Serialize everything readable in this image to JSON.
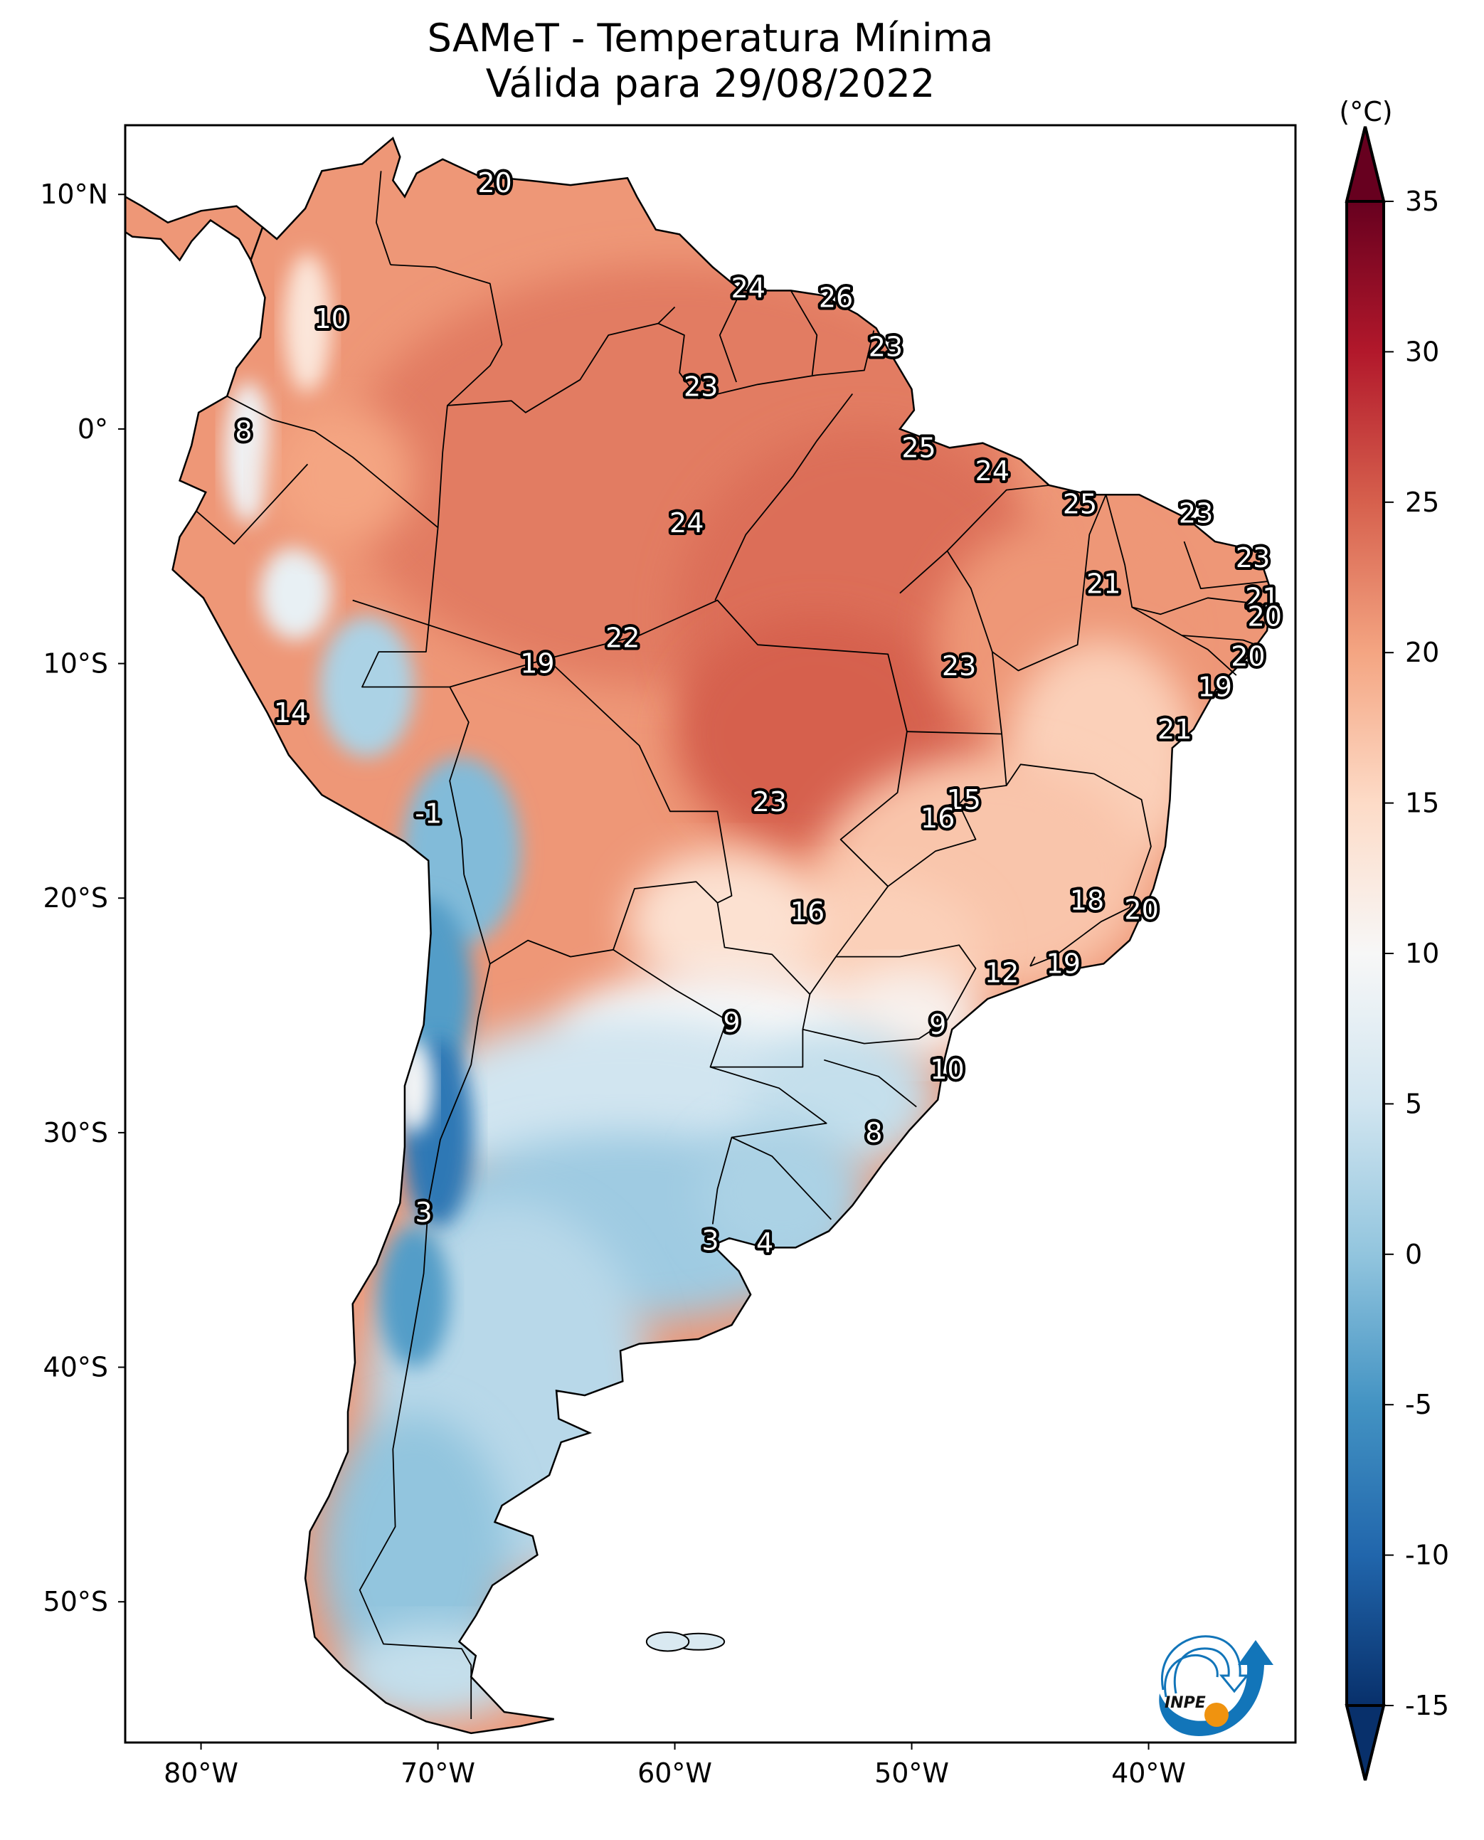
{
  "title": {
    "line1": "SAMeT - Temperatura Mínima",
    "line2": "Válida para 29/08/2022"
  },
  "chart_data": {
    "type": "heatmap",
    "subtype": "geographic-map",
    "title": "SAMeT - Temperatura Mínima",
    "subtitle": "Válida para 29/08/2022",
    "region": "South America",
    "variable": "Minimum temperature",
    "units": "°C",
    "extent": {
      "lon": [
        -83.2,
        -33.8
      ],
      "lat": [
        -56.0,
        12.95
      ]
    },
    "x_ticks": [
      {
        "value": -80,
        "label": "80°W"
      },
      {
        "value": -70,
        "label": "70°W"
      },
      {
        "value": -60,
        "label": "60°W"
      },
      {
        "value": -50,
        "label": "50°W"
      },
      {
        "value": -40,
        "label": "40°W"
      }
    ],
    "y_ticks": [
      {
        "value": 10,
        "label": "10°N"
      },
      {
        "value": 0,
        "label": "0°"
      },
      {
        "value": -10,
        "label": "10°S"
      },
      {
        "value": -20,
        "label": "20°S"
      },
      {
        "value": -30,
        "label": "30°S"
      },
      {
        "value": -40,
        "label": "40°S"
      },
      {
        "value": -50,
        "label": "50°S"
      }
    ],
    "colorbar": {
      "label": "(°C)",
      "colormap": "RdBu_r",
      "range": [
        -15,
        35
      ],
      "extend": "both",
      "ticks": [
        35,
        30,
        25,
        20,
        15,
        10,
        5,
        0,
        -5,
        -10,
        -15
      ],
      "tick_labels": [
        "35",
        "30",
        "25",
        "20",
        "15",
        "10",
        "5",
        "0",
        "-5",
        "-10",
        "-15"
      ],
      "stops": [
        {
          "value": -15,
          "color": "#08306b"
        },
        {
          "value": -10,
          "color": "#2166ac"
        },
        {
          "value": -5,
          "color": "#4393c3"
        },
        {
          "value": 0,
          "color": "#92c5de"
        },
        {
          "value": 5,
          "color": "#d1e5f0"
        },
        {
          "value": 10,
          "color": "#f7f7f7"
        },
        {
          "value": 15,
          "color": "#fddbc7"
        },
        {
          "value": 20,
          "color": "#f4a582"
        },
        {
          "value": 25,
          "color": "#d6604d"
        },
        {
          "value": 30,
          "color": "#b2182b"
        },
        {
          "value": 35,
          "color": "#67001f"
        }
      ]
    },
    "station_labels": [
      {
        "value": "20",
        "lon": -67.6,
        "lat": 10.5
      },
      {
        "value": "10",
        "lon": -74.5,
        "lat": 4.7
      },
      {
        "value": "8",
        "lon": -78.2,
        "lat": -0.1
      },
      {
        "value": "24",
        "lon": -56.9,
        "lat": 6.0
      },
      {
        "value": "26",
        "lon": -53.2,
        "lat": 5.6
      },
      {
        "value": "23",
        "lon": -51.1,
        "lat": 3.5
      },
      {
        "value": "23",
        "lon": -58.9,
        "lat": 1.8
      },
      {
        "value": "25",
        "lon": -49.7,
        "lat": -0.8
      },
      {
        "value": "24",
        "lon": -59.5,
        "lat": -4.0
      },
      {
        "value": "24",
        "lon": -46.6,
        "lat": -1.8
      },
      {
        "value": "25",
        "lon": -42.9,
        "lat": -3.2
      },
      {
        "value": "23",
        "lon": -38.0,
        "lat": -3.6
      },
      {
        "value": "21",
        "lon": -41.9,
        "lat": -6.6
      },
      {
        "value": "23",
        "lon": -35.6,
        "lat": -5.5
      },
      {
        "value": "21",
        "lon": -35.2,
        "lat": -7.2
      },
      {
        "value": "20",
        "lon": -35.1,
        "lat": -8.0
      },
      {
        "value": "20",
        "lon": -35.8,
        "lat": -9.7
      },
      {
        "value": "19",
        "lon": -37.2,
        "lat": -11.0
      },
      {
        "value": "21",
        "lon": -38.9,
        "lat": -12.8
      },
      {
        "value": "23",
        "lon": -48.0,
        "lat": -10.1
      },
      {
        "value": "22",
        "lon": -62.2,
        "lat": -8.9
      },
      {
        "value": "19",
        "lon": -65.8,
        "lat": -10.0
      },
      {
        "value": "14",
        "lon": -76.2,
        "lat": -12.1
      },
      {
        "value": "-1",
        "lon": -70.4,
        "lat": -16.4
      },
      {
        "value": "23",
        "lon": -56.0,
        "lat": -15.9
      },
      {
        "value": "15",
        "lon": -47.8,
        "lat": -15.8
      },
      {
        "value": "16",
        "lon": -48.9,
        "lat": -16.6
      },
      {
        "value": "16",
        "lon": -54.4,
        "lat": -20.6
      },
      {
        "value": "18",
        "lon": -42.6,
        "lat": -20.1
      },
      {
        "value": "20",
        "lon": -40.3,
        "lat": -20.5
      },
      {
        "value": "19",
        "lon": -43.6,
        "lat": -22.8
      },
      {
        "value": "12",
        "lon": -46.2,
        "lat": -23.2
      },
      {
        "value": "9",
        "lon": -57.6,
        "lat": -25.3
      },
      {
        "value": "9",
        "lon": -48.9,
        "lat": -25.4
      },
      {
        "value": "10",
        "lon": -48.5,
        "lat": -27.3
      },
      {
        "value": "8",
        "lon": -51.6,
        "lat": -30.0
      },
      {
        "value": "3",
        "lon": -70.6,
        "lat": -33.4
      },
      {
        "value": "3",
        "lon": -58.5,
        "lat": -34.6
      },
      {
        "value": "4",
        "lon": -56.2,
        "lat": -34.7
      }
    ]
  },
  "logo": {
    "text": "INPE",
    "colors": {
      "blue": "#1275b9",
      "orange": "#f0930f"
    }
  }
}
